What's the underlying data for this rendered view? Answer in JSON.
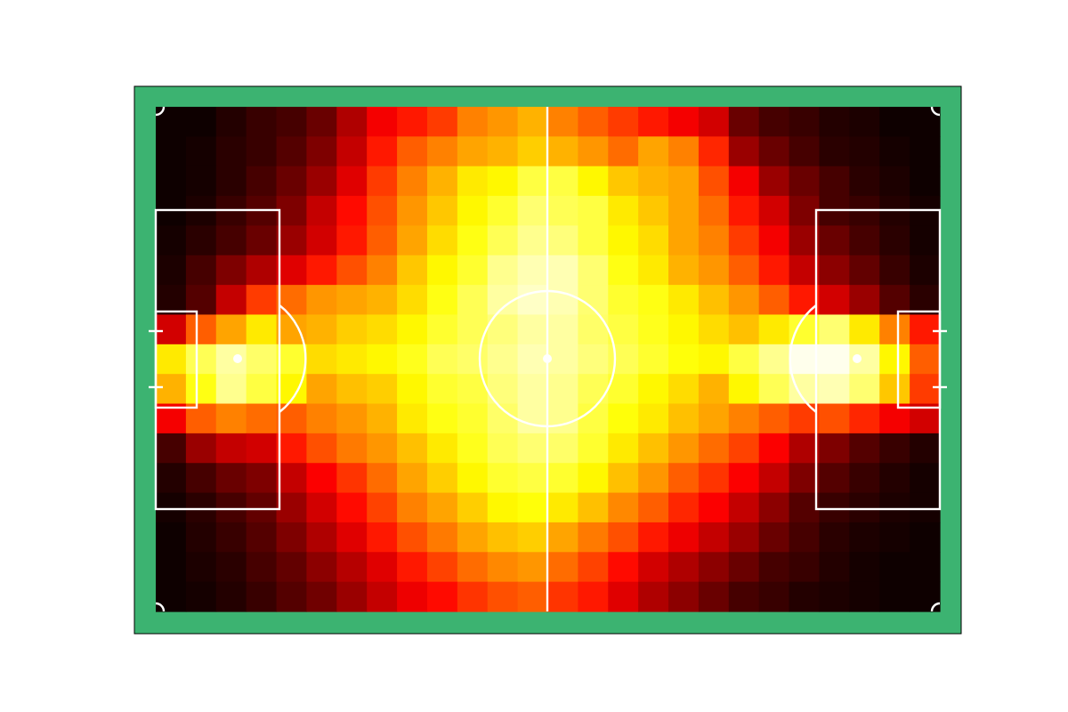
{
  "chart_data": {
    "type": "heatmap",
    "title": "",
    "xlabel": "",
    "ylabel": "",
    "colormap": "hot",
    "grid": false,
    "legend": "none",
    "pitch_color": "#3cb371",
    "line_color": "#ffffff",
    "x_bins": 26,
    "y_bins": 17,
    "xlim": [
      0,
      26
    ],
    "ylim": [
      0,
      17
    ],
    "values": [
      [
        0.02,
        0.02,
        0.05,
        0.08,
        0.1,
        0.15,
        0.25,
        0.35,
        0.4,
        0.45,
        0.55,
        0.58,
        0.62,
        0.55,
        0.5,
        0.45,
        0.4,
        0.35,
        0.3,
        0.15,
        0.1,
        0.08,
        0.05,
        0.04,
        0.02,
        0.02
      ],
      [
        0.02,
        0.03,
        0.06,
        0.08,
        0.12,
        0.18,
        0.28,
        0.4,
        0.5,
        0.55,
        0.6,
        0.62,
        0.66,
        0.62,
        0.58,
        0.52,
        0.6,
        0.55,
        0.42,
        0.22,
        0.15,
        0.1,
        0.06,
        0.05,
        0.03,
        0.02
      ],
      [
        0.02,
        0.03,
        0.06,
        0.1,
        0.15,
        0.22,
        0.32,
        0.45,
        0.55,
        0.62,
        0.7,
        0.72,
        0.8,
        0.8,
        0.72,
        0.65,
        0.62,
        0.6,
        0.48,
        0.35,
        0.22,
        0.15,
        0.1,
        0.06,
        0.04,
        0.02
      ],
      [
        0.02,
        0.04,
        0.08,
        0.12,
        0.18,
        0.28,
        0.38,
        0.48,
        0.58,
        0.65,
        0.72,
        0.78,
        0.85,
        0.82,
        0.8,
        0.7,
        0.65,
        0.6,
        0.52,
        0.4,
        0.3,
        0.18,
        0.1,
        0.08,
        0.05,
        0.03
      ],
      [
        0.03,
        0.06,
        0.1,
        0.15,
        0.22,
        0.3,
        0.4,
        0.5,
        0.6,
        0.68,
        0.75,
        0.82,
        0.88,
        0.86,
        0.8,
        0.72,
        0.68,
        0.6,
        0.55,
        0.45,
        0.35,
        0.22,
        0.15,
        0.1,
        0.06,
        0.03
      ],
      [
        0.04,
        0.1,
        0.18,
        0.25,
        0.32,
        0.4,
        0.48,
        0.55,
        0.65,
        0.72,
        0.78,
        0.88,
        0.92,
        0.92,
        0.85,
        0.75,
        0.7,
        0.62,
        0.58,
        0.5,
        0.4,
        0.28,
        0.2,
        0.14,
        0.08,
        0.04
      ],
      [
        0.05,
        0.12,
        0.28,
        0.45,
        0.52,
        0.58,
        0.6,
        0.62,
        0.68,
        0.75,
        0.82,
        0.9,
        0.94,
        0.92,
        0.85,
        0.78,
        0.75,
        0.7,
        0.64,
        0.58,
        0.5,
        0.4,
        0.3,
        0.22,
        0.12,
        0.06
      ],
      [
        0.3,
        0.5,
        0.6,
        0.7,
        0.6,
        0.62,
        0.66,
        0.68,
        0.72,
        0.78,
        0.82,
        0.86,
        0.9,
        0.9,
        0.84,
        0.8,
        0.76,
        0.72,
        0.68,
        0.64,
        0.7,
        0.78,
        0.85,
        0.7,
        0.55,
        0.4
      ],
      [
        0.7,
        0.82,
        0.9,
        0.84,
        0.78,
        0.68,
        0.7,
        0.72,
        0.76,
        0.82,
        0.84,
        0.88,
        0.92,
        0.9,
        0.86,
        0.82,
        0.78,
        0.74,
        0.72,
        0.8,
        0.88,
        0.98,
        0.98,
        0.9,
        0.72,
        0.5
      ],
      [
        0.62,
        0.75,
        0.88,
        0.8,
        0.72,
        0.6,
        0.64,
        0.66,
        0.72,
        0.78,
        0.8,
        0.86,
        0.9,
        0.88,
        0.82,
        0.78,
        0.72,
        0.68,
        0.62,
        0.72,
        0.82,
        0.9,
        0.92,
        0.85,
        0.65,
        0.45
      ],
      [
        0.35,
        0.5,
        0.55,
        0.52,
        0.5,
        0.55,
        0.58,
        0.62,
        0.7,
        0.75,
        0.78,
        0.84,
        0.9,
        0.88,
        0.8,
        0.74,
        0.7,
        0.64,
        0.6,
        0.55,
        0.5,
        0.45,
        0.48,
        0.42,
        0.35,
        0.3
      ],
      [
        0.1,
        0.22,
        0.28,
        0.3,
        0.4,
        0.48,
        0.54,
        0.58,
        0.64,
        0.7,
        0.76,
        0.82,
        0.85,
        0.84,
        0.78,
        0.7,
        0.64,
        0.58,
        0.52,
        0.46,
        0.36,
        0.25,
        0.18,
        0.12,
        0.08,
        0.05
      ],
      [
        0.05,
        0.1,
        0.15,
        0.18,
        0.28,
        0.36,
        0.44,
        0.52,
        0.6,
        0.66,
        0.72,
        0.78,
        0.8,
        0.78,
        0.72,
        0.64,
        0.58,
        0.5,
        0.44,
        0.36,
        0.28,
        0.18,
        0.12,
        0.08,
        0.05,
        0.03
      ],
      [
        0.03,
        0.06,
        0.1,
        0.14,
        0.22,
        0.3,
        0.38,
        0.46,
        0.55,
        0.6,
        0.66,
        0.72,
        0.74,
        0.7,
        0.64,
        0.56,
        0.5,
        0.42,
        0.36,
        0.28,
        0.2,
        0.12,
        0.08,
        0.06,
        0.04,
        0.03
      ],
      [
        0.02,
        0.05,
        0.08,
        0.12,
        0.18,
        0.25,
        0.32,
        0.4,
        0.48,
        0.54,
        0.6,
        0.64,
        0.66,
        0.6,
        0.54,
        0.48,
        0.4,
        0.34,
        0.28,
        0.22,
        0.15,
        0.1,
        0.06,
        0.04,
        0.03,
        0.02
      ],
      [
        0.02,
        0.04,
        0.06,
        0.1,
        0.14,
        0.2,
        0.26,
        0.32,
        0.4,
        0.46,
        0.52,
        0.56,
        0.58,
        0.52,
        0.46,
        0.38,
        0.3,
        0.25,
        0.2,
        0.15,
        0.1,
        0.08,
        0.05,
        0.03,
        0.02,
        0.02
      ],
      [
        0.02,
        0.03,
        0.05,
        0.08,
        0.12,
        0.16,
        0.22,
        0.28,
        0.34,
        0.38,
        0.44,
        0.48,
        0.5,
        0.44,
        0.4,
        0.32,
        0.25,
        0.2,
        0.15,
        0.1,
        0.08,
        0.05,
        0.04,
        0.03,
        0.02,
        0.02
      ]
    ]
  }
}
